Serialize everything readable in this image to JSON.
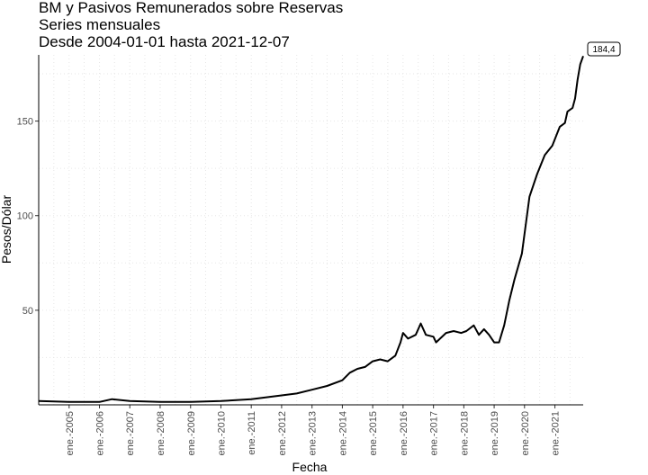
{
  "chart_data": {
    "type": "line",
    "title_lines": [
      "BM y Pasivos Remunerados sobre Reservas",
      "Series mensuales",
      "Desde 2004-01-01 hasta 2021-12-07"
    ],
    "xlabel": "Fecha",
    "ylabel": "Pesos/Dólar",
    "x_range": [
      "2004-01-01",
      "2021-12-07"
    ],
    "y_range": [
      0,
      185
    ],
    "y_ticks": [
      50,
      100,
      150
    ],
    "x_ticks": [
      {
        "date": "2005-01-01",
        "label": "ene.-2005"
      },
      {
        "date": "2006-01-01",
        "label": "ene.-2006"
      },
      {
        "date": "2007-01-01",
        "label": "ene.-2007"
      },
      {
        "date": "2008-01-01",
        "label": "ene.-2008"
      },
      {
        "date": "2009-01-01",
        "label": "ene.-2009"
      },
      {
        "date": "2010-01-01",
        "label": "ene.-2010"
      },
      {
        "date": "2011-01-01",
        "label": "ene.-2011"
      },
      {
        "date": "2012-01-01",
        "label": "ene.-2012"
      },
      {
        "date": "2013-01-01",
        "label": "ene.-2013"
      },
      {
        "date": "2014-01-01",
        "label": "ene.-2014"
      },
      {
        "date": "2015-01-01",
        "label": "ene.-2015"
      },
      {
        "date": "2016-01-01",
        "label": "ene.-2016"
      },
      {
        "date": "2017-01-01",
        "label": "ene.-2017"
      },
      {
        "date": "2018-01-01",
        "label": "ene.-2018"
      },
      {
        "date": "2019-01-01",
        "label": "ene.-2019"
      },
      {
        "date": "2020-01-01",
        "label": "ene.-2020"
      },
      {
        "date": "2021-01-01",
        "label": "ene.-2021"
      }
    ],
    "grid": "dotted",
    "line_color": "#000000",
    "end_label": "184,4",
    "series": [
      {
        "x": [
          "2004-01-01",
          "2005-01-01",
          "2006-01-01",
          "2006-06-01",
          "2007-01-01",
          "2008-01-01",
          "2009-01-01",
          "2010-01-01",
          "2011-01-01",
          "2012-01-01",
          "2012-07-01",
          "2013-01-01",
          "2013-07-01",
          "2014-01-01",
          "2014-04-01",
          "2014-07-01",
          "2014-10-01",
          "2015-01-01",
          "2015-04-01",
          "2015-07-01",
          "2015-10-01",
          "2015-12-01",
          "2016-01-01",
          "2016-03-01",
          "2016-06-01",
          "2016-08-01",
          "2016-10-01",
          "2017-01-01",
          "2017-02-01",
          "2017-06-01",
          "2017-09-01",
          "2017-12-01",
          "2018-02-01",
          "2018-05-01",
          "2018-07-01",
          "2018-09-01",
          "2018-11-01",
          "2019-01-01",
          "2019-03-01",
          "2019-05-01",
          "2019-07-01",
          "2019-09-01",
          "2019-12-01",
          "2020-03-01",
          "2020-06-01",
          "2020-09-01",
          "2020-12-01",
          "2021-03-01",
          "2021-05-01",
          "2021-06-01",
          "2021-08-01",
          "2021-09-01",
          "2021-10-01",
          "2021-11-01",
          "2021-12-07"
        ],
        "y": [
          2,
          1.5,
          1.5,
          3,
          2,
          1.5,
          1.5,
          2,
          3,
          5,
          6,
          8,
          10,
          13,
          17,
          19,
          20,
          23,
          24,
          23,
          26,
          33,
          38,
          35,
          37,
          43,
          37,
          36,
          33,
          38,
          39,
          38,
          39,
          42,
          37,
          40,
          37,
          33,
          33,
          42,
          55,
          66,
          80,
          110,
          122,
          132,
          137,
          147,
          149,
          155,
          157,
          162,
          172,
          180,
          184.4
        ]
      }
    ]
  }
}
